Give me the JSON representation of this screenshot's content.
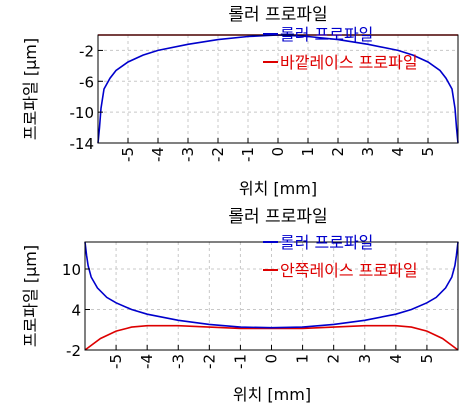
{
  "chart_data": [
    {
      "type": "line",
      "title": "롤러 프로파일",
      "xlabel": "위치 [mm]",
      "ylabel": "프로파일 [μm]",
      "xlim": [
        -6,
        6
      ],
      "ylim": [
        -14,
        0
      ],
      "xticks": [
        -5,
        -4,
        -3,
        -2,
        -1,
        0,
        1,
        2,
        3,
        4,
        5
      ],
      "xtick_labels": [
        "-5",
        "-4",
        "-3",
        "-2",
        "-1",
        "0",
        "1",
        "2",
        "3",
        "4",
        "5"
      ],
      "yticks": [
        -14,
        -10,
        -6,
        -2
      ],
      "ytick_labels": [
        "-14",
        "-10",
        "-6",
        "-2"
      ],
      "grid": true,
      "legend_position": "top-right",
      "series": [
        {
          "name": "롤러 프로파일",
          "color": "#0000cc",
          "x": [
            -6,
            -5.95,
            -5.9,
            -5.8,
            -5.6,
            -5.4,
            -5.0,
            -4.5,
            -4.0,
            -3.0,
            -2.0,
            -1.0,
            0,
            1.0,
            2.0,
            3.0,
            4.0,
            4.5,
            5.0,
            5.4,
            5.6,
            5.8,
            5.9,
            5.95,
            6
          ],
          "y": [
            -14,
            -12,
            -9.5,
            -7.0,
            -5.6,
            -4.6,
            -3.5,
            -2.6,
            -2.0,
            -1.2,
            -0.6,
            -0.2,
            0,
            -0.2,
            -0.6,
            -1.2,
            -2.0,
            -2.6,
            -3.5,
            -4.6,
            -5.6,
            -7.0,
            -9.5,
            -12,
            -14
          ]
        },
        {
          "name": "바깥레이스 프로파일",
          "color": "#dd0000",
          "x": [
            -6,
            6
          ],
          "y": [
            0,
            0
          ]
        }
      ]
    },
    {
      "type": "line",
      "title": "롤러 프로파일",
      "xlabel": "위치 [mm]",
      "ylabel": "프로파일 [μm]",
      "xlim": [
        -6,
        6
      ],
      "ylim": [
        -2,
        14
      ],
      "xticks": [
        -5,
        -4,
        -3,
        -2,
        -1,
        0,
        1,
        2,
        3,
        4,
        5
      ],
      "xtick_labels": [
        "-5",
        "-4",
        "-3",
        "-2",
        "-1",
        "0",
        "1",
        "2",
        "3",
        "4",
        "5"
      ],
      "yticks": [
        -2,
        4,
        10
      ],
      "ytick_labels": [
        "-2",
        "4",
        "10"
      ],
      "grid": true,
      "legend_position": "top-right",
      "series": [
        {
          "name": "롤러 프로파일",
          "color": "#0000cc",
          "x": [
            -6,
            -5.95,
            -5.9,
            -5.8,
            -5.6,
            -5.3,
            -5.0,
            -4.5,
            -4.0,
            -3.0,
            -2.0,
            -1.0,
            0,
            1.0,
            2.0,
            3.0,
            4.0,
            4.5,
            5.0,
            5.3,
            5.6,
            5.8,
            5.9,
            5.95,
            6
          ],
          "y": [
            14,
            12,
            10.5,
            8.8,
            7.2,
            5.8,
            5.0,
            4.0,
            3.3,
            2.4,
            1.8,
            1.4,
            1.3,
            1.4,
            1.8,
            2.4,
            3.3,
            4.0,
            5.0,
            5.8,
            7.2,
            8.8,
            10.5,
            12,
            14
          ]
        },
        {
          "name": "안쪽레이스 프로파일",
          "color": "#dd0000",
          "x": [
            -6,
            -5.5,
            -5.0,
            -4.5,
            -4.0,
            -3.0,
            -2.0,
            -1.0,
            0,
            1.0,
            2.0,
            3.0,
            4.0,
            4.5,
            5.0,
            5.5,
            6
          ],
          "y": [
            -2,
            -0.3,
            0.8,
            1.4,
            1.6,
            1.6,
            1.4,
            1.2,
            1.2,
            1.2,
            1.4,
            1.6,
            1.6,
            1.4,
            0.8,
            -0.3,
            -2
          ]
        }
      ]
    }
  ]
}
